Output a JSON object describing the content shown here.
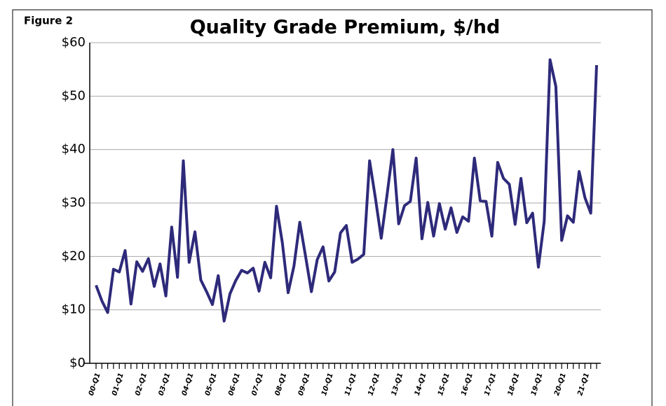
{
  "chart_data": {
    "type": "line",
    "figure_label": "Figure 2",
    "title": "Quality Grade Premium, $/hd",
    "categories": [
      "00-Q1",
      null,
      null,
      null,
      "01-Q1",
      null,
      null,
      null,
      "02-Q1",
      null,
      null,
      null,
      "03-Q1",
      null,
      null,
      null,
      "04-Q1",
      null,
      null,
      null,
      "05-Q1",
      null,
      null,
      null,
      "06-Q1",
      null,
      null,
      null,
      "07-Q1",
      null,
      null,
      null,
      "08-Q1",
      null,
      null,
      null,
      "09-Q1",
      null,
      null,
      null,
      "10-Q1",
      null,
      null,
      null,
      "11-Q1",
      null,
      null,
      null,
      "12-Q1",
      null,
      null,
      null,
      "13-Q1",
      null,
      null,
      null,
      "14-Q1",
      null,
      null,
      null,
      "15-Q1",
      null,
      null,
      null,
      "16-Q1",
      null,
      null,
      null,
      "17-Q1",
      null,
      null,
      null,
      "18-Q1",
      null,
      null,
      null,
      "19-Q1",
      null,
      null,
      null,
      "20-Q1",
      null,
      null,
      null,
      "21-Q1",
      null,
      null
    ],
    "series": [
      {
        "color": "#2e2a7a",
        "values": [
          14.6,
          11.7,
          9.5,
          17.6,
          17.1,
          21.1,
          11.1,
          19,
          17.2,
          19.6,
          14.4,
          18.6,
          12.6,
          25.5,
          16.1,
          37.9,
          18.9,
          24.6,
          15.6,
          13.4,
          11,
          16.4,
          7.9,
          13,
          15.5,
          17.4,
          16.9,
          17.8,
          13.5,
          18.9,
          16,
          29.4,
          22.6,
          13.2,
          18.2,
          26.4,
          20,
          13.4,
          19.4,
          21.8,
          15.4,
          17.1,
          24.4,
          25.8,
          18.9,
          19.5,
          20.4,
          37.9,
          30.9,
          23.4,
          31.5,
          40,
          26.1,
          29.5,
          30.3,
          38.4,
          23.3,
          30.1,
          23.8,
          29.9,
          25.1,
          29.1,
          24.5,
          27.4,
          26.6,
          38.4,
          30.4,
          30.3,
          23.8,
          37.6,
          34.6,
          33.5,
          26,
          34.6,
          26.3,
          28.1,
          18,
          26.6,
          56.8,
          51.8,
          23,
          27.6,
          26.4,
          35.9,
          31,
          28.1,
          55.8
        ]
      }
    ],
    "ylim": [
      0,
      60
    ],
    "yticks": [
      {
        "value": 0,
        "label": "$0"
      },
      {
        "value": 10,
        "label": "$10"
      },
      {
        "value": 20,
        "label": "$20"
      },
      {
        "value": 30,
        "label": "$30"
      },
      {
        "value": 40,
        "label": "$40"
      },
      {
        "value": 50,
        "label": "$50"
      },
      {
        "value": 60,
        "label": "$60"
      }
    ],
    "grid": true
  }
}
